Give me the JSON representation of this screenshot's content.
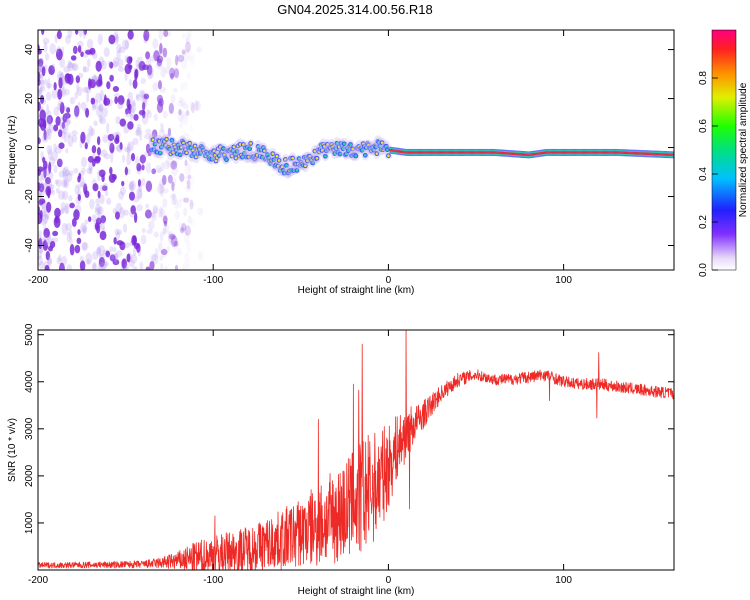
{
  "title": "GN04.2025.314.00.56.R18",
  "colors": {
    "snr_line": "#ee2a26",
    "scatter": "#7b2ad8",
    "ridge_hot": "#ff1a3c",
    "ridge_core": "#ffe020",
    "ridge_mid": "#22d8a0",
    "ridge_edge": "#3050ff"
  },
  "chart_data": [
    {
      "id": "spectrogram",
      "type": "heatmap",
      "xlabel": "Height of straight line (km)",
      "ylabel": "Frequency (Hz)",
      "xlim": [
        -200,
        163
      ],
      "ylim": [
        -50,
        48
      ],
      "xticks": [
        -200,
        -100,
        0,
        100
      ],
      "xtick_labels": [
        "-200",
        "-100",
        "0",
        "100"
      ],
      "yticks": [
        -40,
        -20,
        0,
        20,
        40
      ],
      "ytick_labels": [
        "-40",
        "-20",
        "0",
        "20",
        "40"
      ],
      "ridge": {
        "x": [
          -135,
          -120,
          -110,
          -100,
          -90,
          -80,
          -70,
          -60,
          -50,
          -40,
          -30,
          -20,
          -10,
          0,
          10,
          30,
          60,
          80,
          90,
          110,
          130,
          163
        ],
        "freq": [
          1,
          0,
          -1,
          -3,
          -2,
          -1,
          -3,
          -8,
          -6,
          -2,
          0,
          -1,
          0,
          -1,
          -2,
          -2,
          -2,
          -3,
          -2,
          -2,
          -2,
          -3
        ]
      },
      "noise_region_x": [
        -200,
        -115
      ],
      "colorbar": {
        "label": "Normalized spectral amplitude",
        "range": [
          0,
          1
        ],
        "ticks": [
          0.0,
          0.2,
          0.4,
          0.6,
          0.8
        ],
        "tick_labels": [
          "0.0",
          "0.2",
          "0.4",
          "0.6",
          "0.8"
        ]
      }
    },
    {
      "id": "snr",
      "type": "line",
      "xlabel": "Height of straight line (km)",
      "ylabel": "SNR (10 * v/v)",
      "xlim": [
        -200,
        163
      ],
      "ylim": [
        0,
        5100
      ],
      "xticks": [
        -200,
        -100,
        0,
        100
      ],
      "xtick_labels": [
        "-200",
        "-100",
        "0",
        "100"
      ],
      "yticks": [
        1000,
        2000,
        3000,
        4000,
        5000
      ],
      "ytick_labels": [
        "1000",
        "2000",
        "3000",
        "4000",
        "5000"
      ],
      "envelope": {
        "x": [
          -200,
          -160,
          -140,
          -130,
          -120,
          -110,
          -100,
          -90,
          -80,
          -70,
          -60,
          -50,
          -40,
          -30,
          -20,
          -15,
          -10,
          -5,
          0,
          5,
          10,
          15,
          20,
          30,
          40,
          50,
          60,
          70,
          80,
          90,
          100,
          110,
          120,
          130,
          140,
          150,
          163
        ],
        "base": [
          100,
          110,
          120,
          150,
          200,
          250,
          300,
          380,
          450,
          550,
          650,
          800,
          950,
          1150,
          1400,
          1550,
          1700,
          1900,
          2200,
          2600,
          2900,
          3100,
          3300,
          3750,
          4050,
          4150,
          4050,
          4050,
          4100,
          4150,
          4000,
          3950,
          3950,
          3900,
          3850,
          3800,
          3750
        ],
        "noise": [
          60,
          70,
          80,
          120,
          200,
          350,
          450,
          450,
          500,
          550,
          650,
          750,
          900,
          1000,
          1200,
          1300,
          1200,
          1100,
          900,
          700,
          600,
          400,
          300,
          180,
          150,
          120,
          120,
          120,
          130,
          130,
          120,
          120,
          130,
          120,
          120,
          120,
          120
        ]
      },
      "spikes": [
        {
          "x": -99,
          "y": 1150
        },
        {
          "x": -40,
          "y": 3200
        },
        {
          "x": -20,
          "y": 3950
        },
        {
          "x": -17,
          "y": 3820
        },
        {
          "x": -15,
          "y": 4800
        },
        {
          "x": 10,
          "y": 5100
        },
        {
          "x": 12,
          "y": 1300
        },
        {
          "x": 120,
          "y": 4620
        },
        {
          "x": 119,
          "y": 3230
        },
        {
          "x": 92,
          "y": 3600
        }
      ]
    }
  ]
}
